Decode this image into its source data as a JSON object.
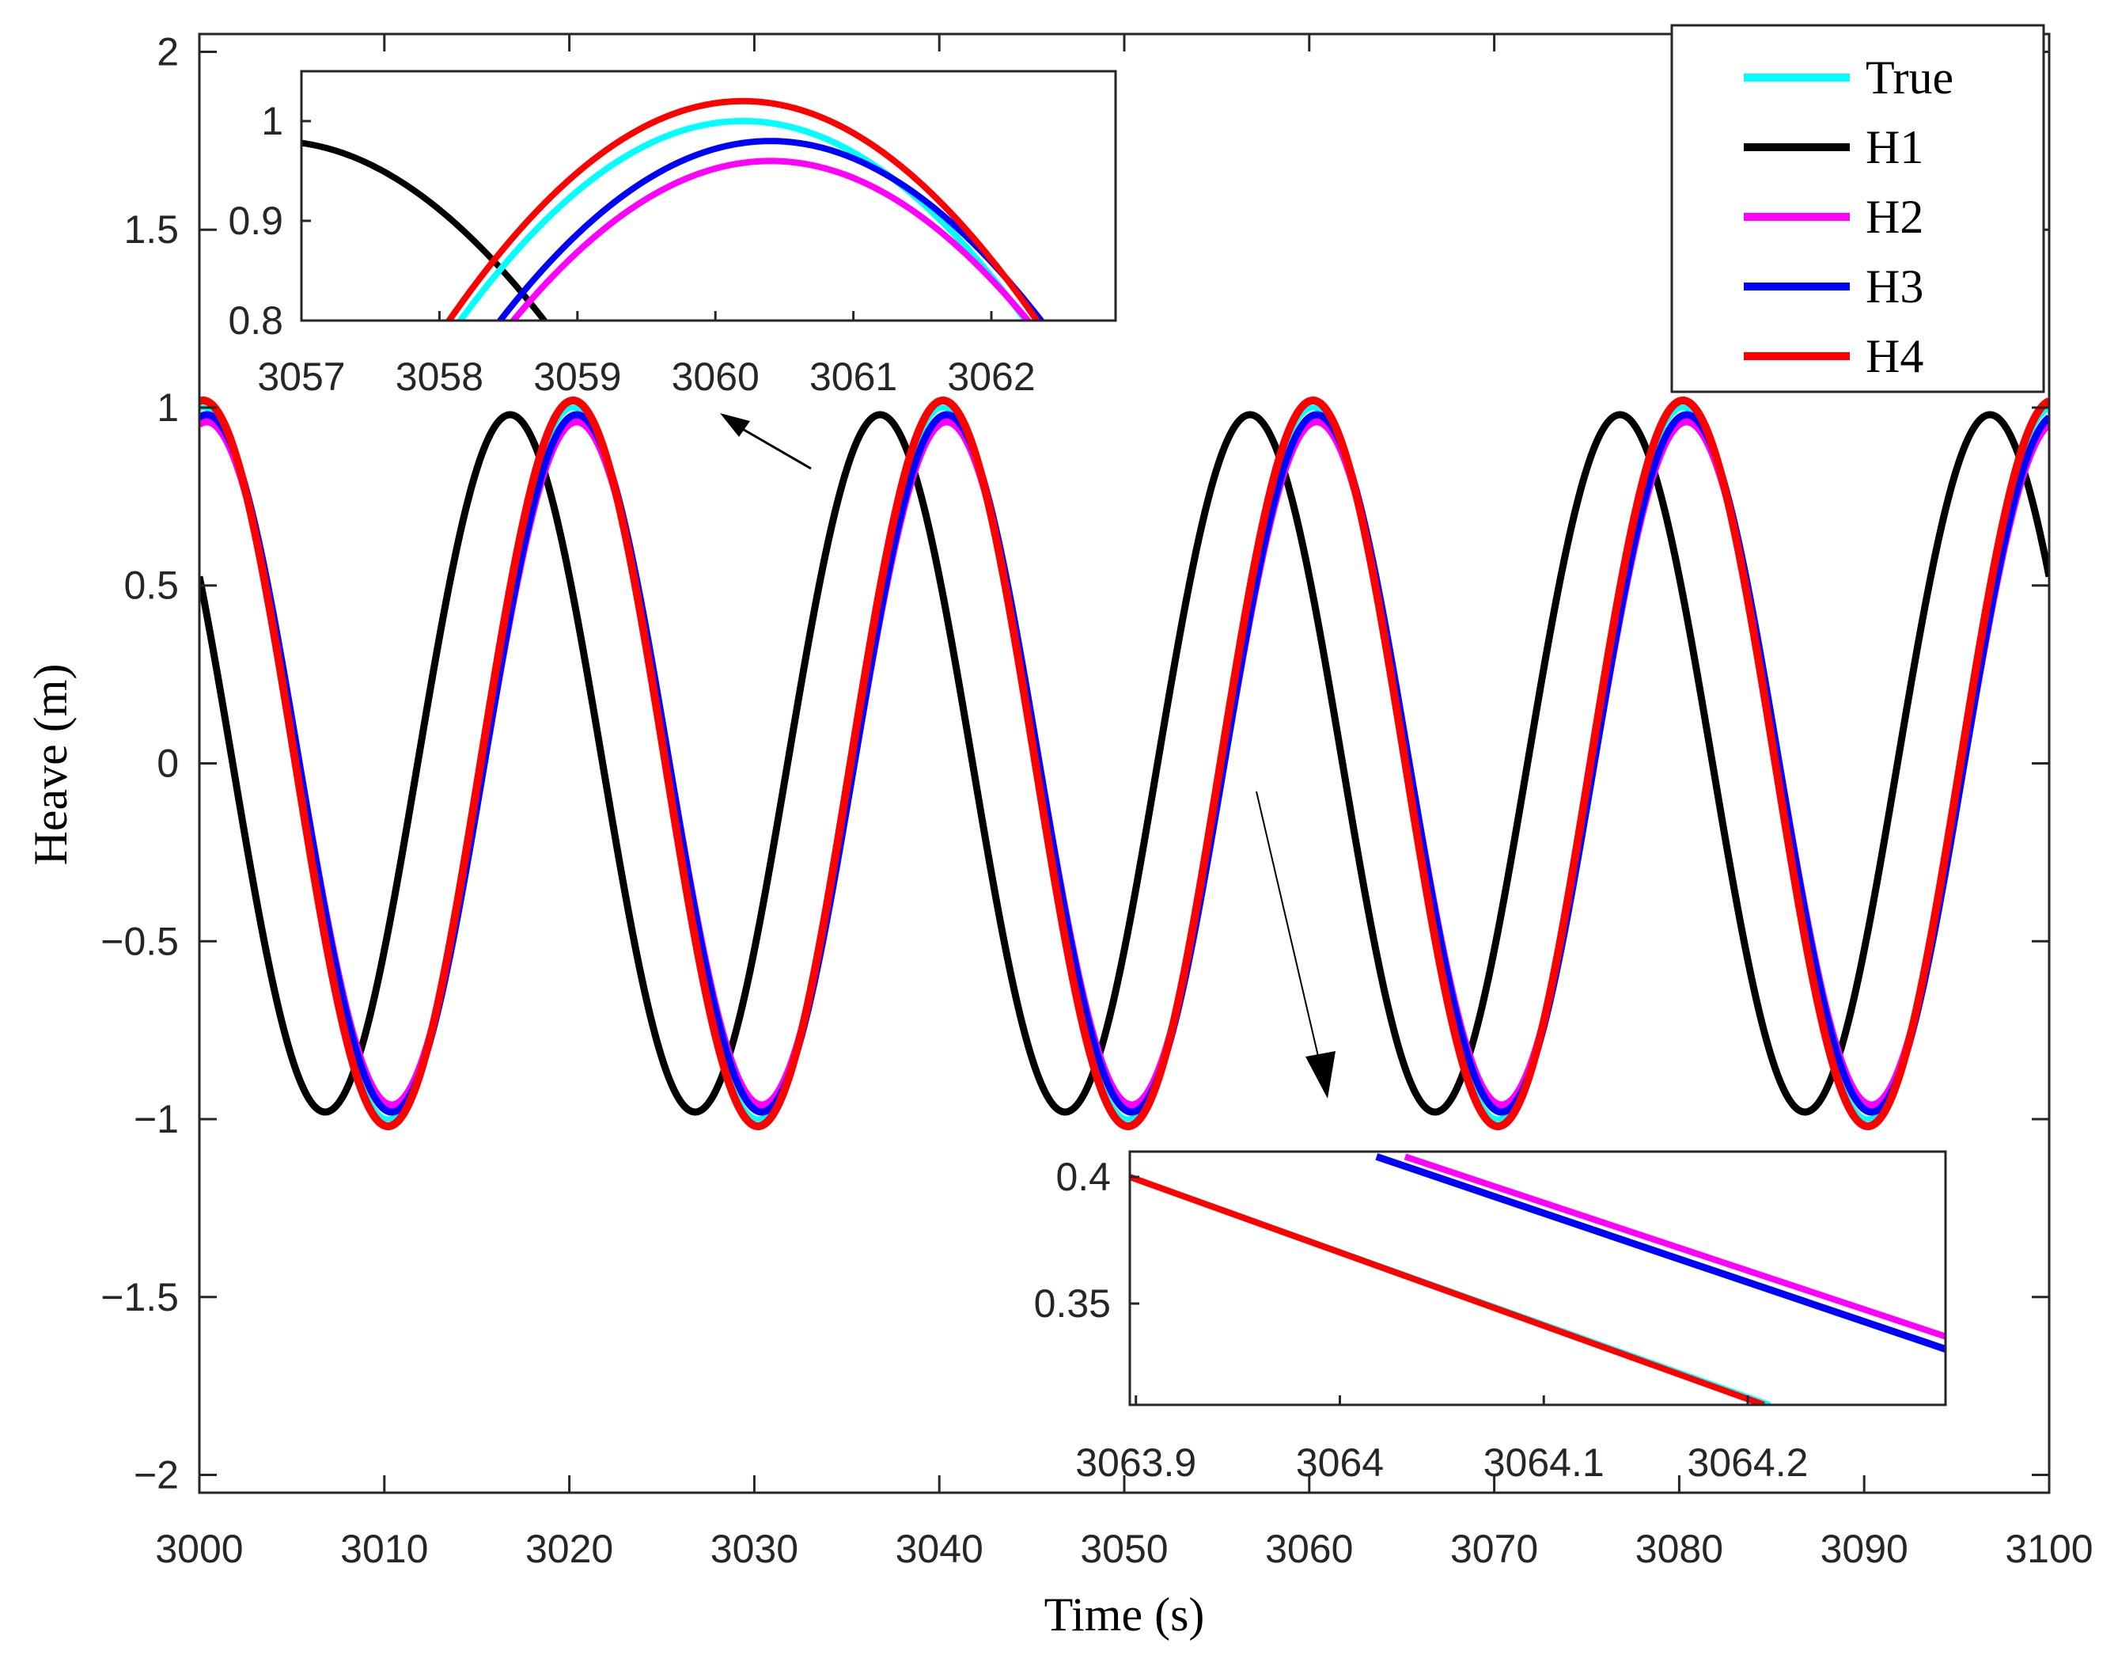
{
  "chart_data": {
    "main": {
      "type": "line",
      "xlabel": "Time (s)",
      "ylabel": "Heave (m)",
      "xlim": [
        3000,
        3100
      ],
      "ylim": [
        -2.05,
        2.05
      ],
      "xticks": [
        3000,
        3010,
        3020,
        3030,
        3040,
        3050,
        3060,
        3070,
        3080,
        3090,
        3100
      ],
      "yticks": [
        -2,
        -1.5,
        -1,
        -0.5,
        0,
        0.5,
        1,
        1.5,
        2
      ],
      "xtick_labels": [
        "3000",
        "3010",
        "3020",
        "3030",
        "3040",
        "3050",
        "3060",
        "3070",
        "3080",
        "3090",
        "3100"
      ],
      "ytick_labels": [
        "−2",
        "−1.5",
        "−1",
        "−0.5",
        "0",
        "0.5",
        "1",
        "1.5",
        "2"
      ],
      "period_s": 20,
      "series": [
        {
          "name": "True",
          "color": "#00ffff",
          "amplitude": 1.0,
          "peak_time_s": 3060.2
        },
        {
          "name": "H1",
          "color": "#000000",
          "amplitude": 0.98,
          "peak_time_s": 3056.8
        },
        {
          "name": "H2",
          "color": "#ff00ff",
          "amplitude": 0.96,
          "peak_time_s": 3060.4
        },
        {
          "name": "H3",
          "color": "#0000ff",
          "amplitude": 0.98,
          "peak_time_s": 3060.4
        },
        {
          "name": "H4",
          "color": "#ff0000",
          "amplitude": 1.02,
          "peak_time_s": 3060.2
        }
      ],
      "legend": [
        "True",
        "H1",
        "H2",
        "H3",
        "H4"
      ],
      "legend_location": "top-right"
    },
    "inset_top": {
      "type": "line",
      "xlim": [
        3057,
        3062.9
      ],
      "ylim": [
        0.8,
        1.05
      ],
      "xticks": [
        3057,
        3058,
        3059,
        3060,
        3061,
        3062
      ],
      "yticks": [
        0.8,
        0.9,
        1
      ],
      "xtick_labels": [
        "3057",
        "3058",
        "3059",
        "3060",
        "3061",
        "3062"
      ],
      "ytick_labels": [
        "0.8",
        "0.9",
        "1"
      ]
    },
    "inset_bottom": {
      "type": "line",
      "xlim": [
        3063.897,
        3064.297
      ],
      "ylim": [
        0.31,
        0.41
      ],
      "xticks": [
        3063.9,
        3064,
        3064.1,
        3064.2
      ],
      "yticks": [
        0.35,
        0.4
      ],
      "xtick_labels": [
        "3063.9",
        "3064",
        "3064.1",
        "3064.2"
      ],
      "ytick_labels": [
        "0.35",
        "0.4"
      ],
      "segments": [
        {
          "name": "True",
          "color": "#00ffff",
          "x": [
            3063.897,
            3064.211
          ],
          "y": [
            0.4,
            0.31
          ]
        },
        {
          "name": "H4",
          "color": "#ff0000",
          "x": [
            3063.897,
            3064.208
          ],
          "y": [
            0.4,
            0.31
          ]
        },
        {
          "name": "H2",
          "color": "#ff00ff",
          "x": [
            3064.032,
            3064.297
          ],
          "y": [
            0.408,
            0.337
          ]
        },
        {
          "name": "H3",
          "color": "#0000ff",
          "x": [
            3064.018,
            3064.297
          ],
          "y": [
            0.408,
            0.332
          ]
        }
      ]
    }
  }
}
